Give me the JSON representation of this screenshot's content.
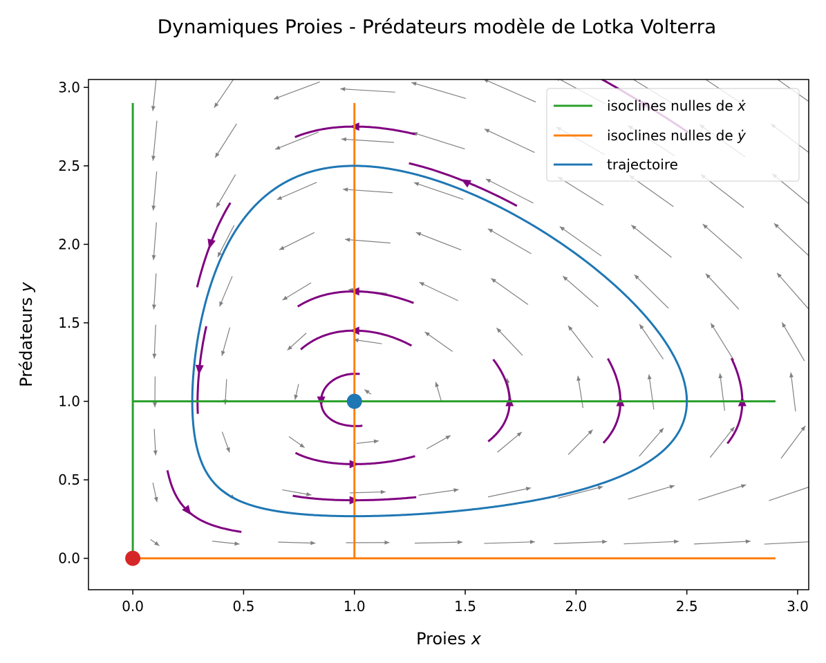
{
  "chart_data": {
    "type": "phase-portrait",
    "title": "Dynamiques Proies - Prédateurs modèle de Lotka Volterra",
    "xlabel_text": "Proies ",
    "xlabel_var": "x",
    "ylabel_text": "Prédateurs ",
    "ylabel_var": "y",
    "xlim": [
      -0.2,
      3.05
    ],
    "ylim": [
      -0.2,
      3.05
    ],
    "x_ticks": [
      "0.0",
      "0.5",
      "1.0",
      "1.5",
      "2.0",
      "2.5",
      "3.0"
    ],
    "y_ticks": [
      "0.0",
      "0.5",
      "1.0",
      "1.5",
      "2.0",
      "2.5",
      "3.0"
    ],
    "model": {
      "a": 1,
      "b": 1,
      "c": 1,
      "d": 1
    },
    "colors": {
      "x_nullcline": "#2ca02c",
      "y_nullcline": "#ff7f0e",
      "trajectory": "#1f77b4",
      "streamlines": "#800080",
      "quiver": "#808080",
      "origin_point": "#d62728",
      "equilibrium_point": "#1f77b4"
    },
    "legend": {
      "position": "upper-right",
      "entries": [
        {
          "label": "isoclines nulles de ",
          "var": "ẋ",
          "color": "#2ca02c"
        },
        {
          "label": "isoclines nulles de ",
          "var": "ẏ",
          "color": "#ff7f0e"
        },
        {
          "label": "trajectoire",
          "var": "",
          "color": "#1f77b4"
        }
      ]
    },
    "x_nullclines": [
      {
        "x": [
          0,
          0
        ],
        "y": [
          0,
          2.9
        ]
      },
      {
        "x": [
          0,
          2.9
        ],
        "y": [
          1,
          1
        ]
      }
    ],
    "y_nullclines": [
      {
        "x": [
          1,
          1
        ],
        "y": [
          0,
          2.9
        ]
      },
      {
        "x": [
          0,
          2.9
        ],
        "y": [
          0,
          0
        ]
      }
    ],
    "equilibria": [
      {
        "x": 0,
        "y": 0
      },
      {
        "x": 1,
        "y": 1
      }
    ],
    "trajectory_start": {
      "x": 2.5,
      "y": 1.0
    },
    "quiver_grid": {
      "x_start": 0.1,
      "x_step": 0.32,
      "count": 10
    },
    "stream_seeds": [
      [
        1.0,
        1.45
      ],
      [
        1.0,
        1.7
      ],
      [
        1.0,
        2.75
      ],
      [
        0.85,
        1.0
      ],
      [
        1.7,
        1.0
      ],
      [
        2.2,
        1.0
      ],
      [
        2.75,
        1.0
      ],
      [
        0.3,
        1.2
      ],
      [
        0.35,
        2.0
      ],
      [
        0.25,
        0.3
      ],
      [
        1.0,
        0.37
      ],
      [
        1.0,
        0.6
      ],
      [
        1.5,
        2.4
      ],
      [
        2.3,
        2.9
      ]
    ]
  }
}
